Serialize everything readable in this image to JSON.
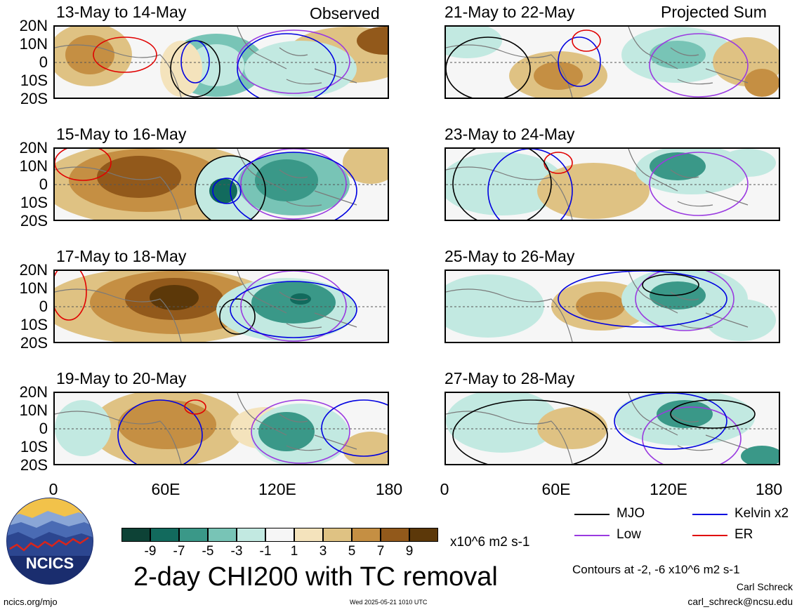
{
  "chart_data": {
    "type": "heatmap",
    "title": "2-day CHI200 with TC removal",
    "units": "x10^6 m2 s-1",
    "column_headers": {
      "left": "Observed",
      "right": "Projected Sum"
    },
    "panels": [
      {
        "date": "13-May to 14-May",
        "column": "Observed"
      },
      {
        "date": "15-May to 16-May",
        "column": "Observed"
      },
      {
        "date": "17-May to 18-May",
        "column": "Observed"
      },
      {
        "date": "19-May to 20-May",
        "column": "Observed"
      },
      {
        "date": "21-May to 22-May",
        "column": "Projected Sum"
      },
      {
        "date": "23-May to 24-May",
        "column": "Projected Sum"
      },
      {
        "date": "25-May to 26-May",
        "column": "Projected Sum"
      },
      {
        "date": "27-May to 28-May",
        "column": "Projected Sum"
      }
    ],
    "lat_ticks": [
      "20N",
      "10N",
      "0",
      "10S",
      "20S"
    ],
    "lon_ticks": [
      "0",
      "60E",
      "120E",
      "180"
    ],
    "xlim": [
      0,
      180
    ],
    "ylim": [
      -20,
      20
    ],
    "colorbar": {
      "ticks": [
        "-9",
        "-7",
        "-5",
        "-3",
        "-1",
        "1",
        "3",
        "5",
        "7",
        "9"
      ],
      "colors": [
        "#0d4236",
        "#126a5d",
        "#3a9888",
        "#78c4b6",
        "#c2e9e1",
        "#f6f6f6",
        "#f4e3bc",
        "#dfc283",
        "#c58f43",
        "#92591b",
        "#5c3809"
      ]
    },
    "contour_note": "Contours at -2, -6 x10^6 m2 s-1",
    "legend": [
      {
        "label": "MJO",
        "color": "#000000"
      },
      {
        "label": "Kelvin x2",
        "color": "#0000e0"
      },
      {
        "label": "Low",
        "color": "#9a3ae0"
      },
      {
        "label": "ER",
        "color": "#e00000"
      }
    ]
  },
  "logo": {
    "text": "NCICS"
  },
  "footer": {
    "url": "ncics.org/mjo",
    "timestamp": "Wed 2025-05-21 1010 UTC",
    "author": "Carl Schreck",
    "email": "carl_schreck@ncsu.edu"
  }
}
